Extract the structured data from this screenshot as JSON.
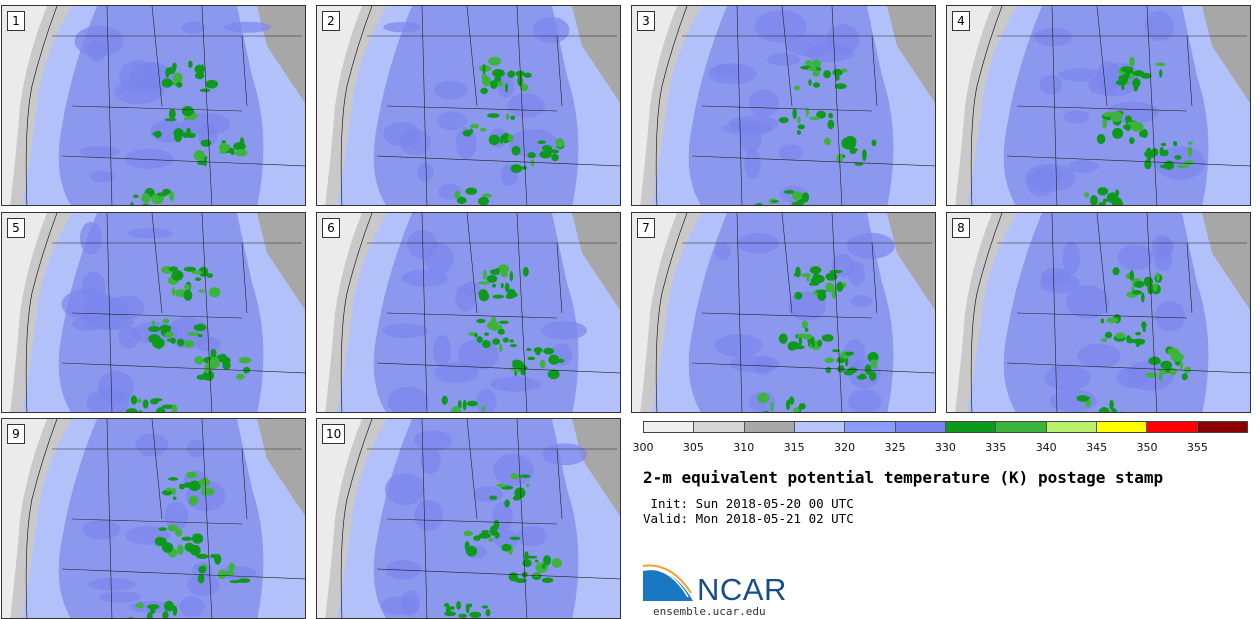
{
  "panels": [
    {
      "label": "1"
    },
    {
      "label": "2"
    },
    {
      "label": "3"
    },
    {
      "label": "4"
    },
    {
      "label": "5"
    },
    {
      "label": "6"
    },
    {
      "label": "7"
    },
    {
      "label": "8"
    },
    {
      "label": "9"
    },
    {
      "label": "10"
    }
  ],
  "colorbar": {
    "ticks": [
      "300",
      "305",
      "310",
      "315",
      "320",
      "325",
      "330",
      "335",
      "340",
      "345",
      "350",
      "355"
    ],
    "colors": [
      "#efefef",
      "#d6d6d6",
      "#a8a8a8",
      "#b8c6fb",
      "#8a9dfa",
      "#7a85ee",
      "#0d9a1c",
      "#3cb43c",
      "#b9f06a",
      "#ffff00",
      "#ff0000",
      "#8a0000"
    ]
  },
  "title": "2-m equivalent potential temperature (K) postage stamp",
  "init": " Init: Sun 2018-05-20 00 UTC",
  "valid": "Valid: Mon 2018-05-21 02 UTC",
  "logo": {
    "name": "NCAR",
    "url": "ensemble.ucar.edu"
  }
}
